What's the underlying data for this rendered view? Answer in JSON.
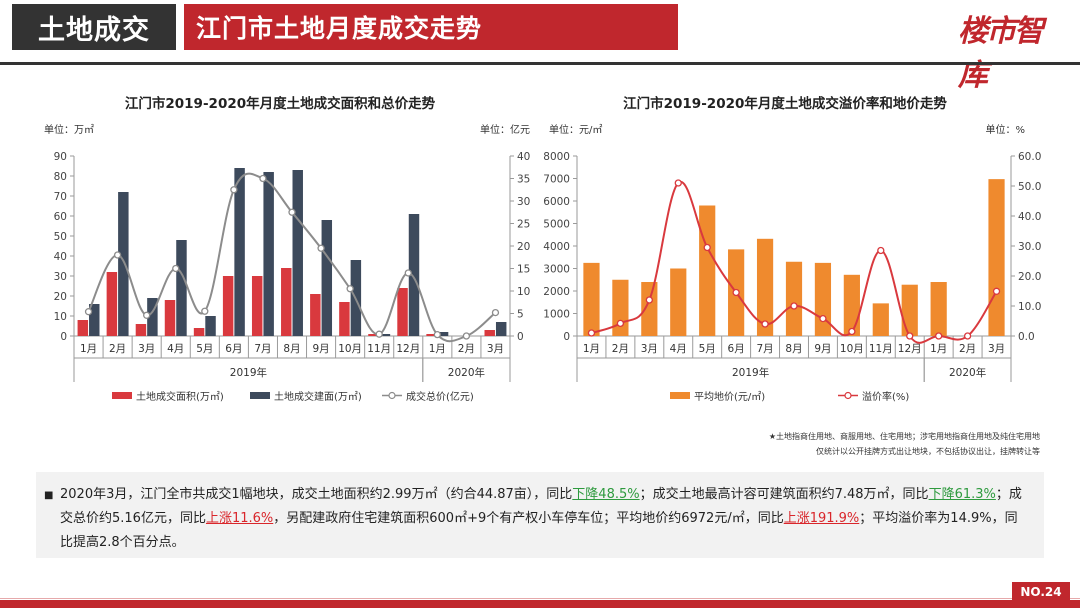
{
  "header": {
    "section": "土地成交",
    "title": "江门市土地月度成交走势",
    "logo": "楼市智库"
  },
  "notes": [
    "★土地指商住用地、商服用地、住宅用地；涉宅用地指商住用地及纯住宅用地",
    "仅统计以公开挂牌方式出让地块，不包括协议出让，挂牌转让等"
  ],
  "summary": {
    "parts": [
      {
        "text": "2020年3月，江门全市共成交1幅地块，成交土地面积约2.99万㎡（约合44.87亩），同比",
        "style": "normal"
      },
      {
        "text": "下降48.5%",
        "style": "down"
      },
      {
        "text": "；成交土地最高计容可建筑面积约7.48万㎡，同比",
        "style": "normal"
      },
      {
        "text": "下降61.3%",
        "style": "down"
      },
      {
        "text": "；成交总价约5.16亿元，同比",
        "style": "normal"
      },
      {
        "text": "上涨11.6%",
        "style": "up"
      },
      {
        "text": "，另配建政府住宅建筑面积600㎡+9个有产权小车停车位；平均地价约6972元/㎡，同比",
        "style": "normal"
      },
      {
        "text": "上涨191.9%",
        "style": "up"
      },
      {
        "text": "；平均溢价率为14.9%，同比提高2.8个百分点。",
        "style": "normal"
      }
    ]
  },
  "page_number": "NO.24",
  "chart_data": [
    {
      "type": "bar",
      "title": "江门市2019-2020年月度土地成交面积和总价走势",
      "unit_left": "单位：万㎡",
      "unit_right": "单位：亿元",
      "categories": [
        "1月",
        "2月",
        "3月",
        "4月",
        "5月",
        "6月",
        "7月",
        "8月",
        "9月",
        "10月",
        "11月",
        "12月",
        "1月",
        "2月",
        "3月"
      ],
      "groups": [
        {
          "label": "2019年",
          "start": 0,
          "end": 11
        },
        {
          "label": "2020年",
          "start": 12,
          "end": 14
        }
      ],
      "ylim_left": [
        0,
        90
      ],
      "yticks_left": [
        0,
        10,
        20,
        30,
        40,
        50,
        60,
        70,
        80,
        90
      ],
      "ylim_right": [
        0,
        40
      ],
      "yticks_right": [
        0,
        5,
        10,
        15,
        20,
        25,
        30,
        35,
        40
      ],
      "series": [
        {
          "name": "土地成交面积(万㎡)",
          "kind": "bar",
          "axis": "left",
          "color": "#d9393e",
          "values": [
            8,
            32,
            6,
            18,
            4,
            30,
            30,
            34,
            21,
            17,
            1,
            24,
            1,
            0,
            3
          ]
        },
        {
          "name": "土地成交建面(万㎡)",
          "kind": "bar",
          "axis": "left",
          "color": "#3d4a5c",
          "values": [
            16,
            72,
            19,
            48,
            10,
            84,
            82,
            83,
            58,
            38,
            1,
            61,
            2,
            0,
            7
          ]
        },
        {
          "name": "成交总价(亿元)",
          "kind": "line",
          "axis": "right",
          "color": "#8c8c8c",
          "values": [
            5.4,
            18,
            4.6,
            15,
            5.5,
            32.5,
            35,
            27.5,
            19.5,
            10.5,
            0.4,
            14,
            0.3,
            0,
            5.2
          ]
        }
      ]
    },
    {
      "type": "bar",
      "title": "江门市2019-2020年月度土地成交溢价率和地价走势",
      "unit_left": "单位：元/㎡",
      "unit_right": "单位：%",
      "categories": [
        "1月",
        "2月",
        "3月",
        "4月",
        "5月",
        "6月",
        "7月",
        "8月",
        "9月",
        "10月",
        "11月",
        "12月",
        "1月",
        "2月",
        "3月"
      ],
      "groups": [
        {
          "label": "2019年",
          "start": 0,
          "end": 11
        },
        {
          "label": "2020年",
          "start": 12,
          "end": 14
        }
      ],
      "ylim_left": [
        0,
        8000
      ],
      "yticks_left": [
        0,
        1000,
        2000,
        3000,
        4000,
        5000,
        6000,
        7000,
        8000
      ],
      "ylim_right": [
        0,
        60
      ],
      "yticks_right": [
        "0.0",
        "10.0",
        "20.0",
        "30.0",
        "40.0",
        "50.0",
        "60.0"
      ],
      "series": [
        {
          "name": "平均地价(元/㎡)",
          "kind": "bar",
          "axis": "left",
          "color": "#ef8a2e",
          "values": [
            3250,
            2500,
            2400,
            3000,
            5800,
            3850,
            4320,
            3300,
            3250,
            2720,
            1450,
            2280,
            2400,
            0,
            6972
          ]
        },
        {
          "name": "溢价率(%)",
          "kind": "line",
          "axis": "right",
          "color": "#d9393e",
          "values": [
            1,
            4.2,
            12,
            51,
            29.5,
            14.5,
            4,
            10,
            5.8,
            1.5,
            28.5,
            0,
            0,
            0,
            14.9
          ]
        }
      ]
    }
  ]
}
